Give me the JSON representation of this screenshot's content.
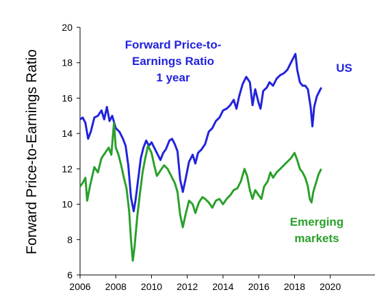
{
  "chart_data": {
    "type": "line",
    "title": "",
    "xlabel": "",
    "ylabel": "Forward Price-to-Earnings Ratio",
    "xlim": [
      2006,
      2022.5
    ],
    "ylim": [
      6,
      20
    ],
    "x_ticks": [
      2006,
      2008,
      2010,
      2012,
      2014,
      2016,
      2018,
      2020
    ],
    "y_ticks": [
      6,
      8,
      10,
      12,
      14,
      16,
      18,
      20
    ],
    "grid": false,
    "legend": "none",
    "annotations": [
      {
        "text": "Forward Price-to-",
        "color": "#2222dd"
      },
      {
        "text": "Earnings Ratio",
        "color": "#2222dd"
      },
      {
        "text": "1 year",
        "color": "#2222dd"
      },
      {
        "text": "US",
        "color": "#2222dd"
      },
      {
        "text": "Emerging",
        "color": "#2aa02a"
      },
      {
        "text": "markets",
        "color": "#2aa02a"
      }
    ],
    "series": [
      {
        "name": "US",
        "color": "#2222dd",
        "points": [
          [
            2006.0,
            14.8
          ],
          [
            2006.15,
            14.9
          ],
          [
            2006.3,
            14.6
          ],
          [
            2006.45,
            13.7
          ],
          [
            2006.6,
            14.1
          ],
          [
            2006.8,
            14.9
          ],
          [
            2007.0,
            15.0
          ],
          [
            2007.2,
            15.3
          ],
          [
            2007.35,
            14.8
          ],
          [
            2007.5,
            15.5
          ],
          [
            2007.65,
            14.7
          ],
          [
            2007.8,
            15.0
          ],
          [
            2008.0,
            14.3
          ],
          [
            2008.2,
            14.1
          ],
          [
            2008.4,
            13.7
          ],
          [
            2008.55,
            13.3
          ],
          [
            2008.7,
            12.2
          ],
          [
            2008.85,
            10.4
          ],
          [
            2009.0,
            9.6
          ],
          [
            2009.1,
            10.2
          ],
          [
            2009.25,
            11.4
          ],
          [
            2009.4,
            12.6
          ],
          [
            2009.55,
            13.2
          ],
          [
            2009.7,
            13.6
          ],
          [
            2009.85,
            13.3
          ],
          [
            2010.0,
            13.5
          ],
          [
            2010.2,
            13.1
          ],
          [
            2010.35,
            12.8
          ],
          [
            2010.5,
            12.5
          ],
          [
            2010.65,
            12.9
          ],
          [
            2010.8,
            13.1
          ],
          [
            2011.0,
            13.6
          ],
          [
            2011.15,
            13.7
          ],
          [
            2011.3,
            13.4
          ],
          [
            2011.45,
            13.0
          ],
          [
            2011.6,
            11.4
          ],
          [
            2011.75,
            10.7
          ],
          [
            2011.9,
            11.4
          ],
          [
            2012.1,
            12.4
          ],
          [
            2012.3,
            12.8
          ],
          [
            2012.45,
            12.3
          ],
          [
            2012.6,
            12.9
          ],
          [
            2012.8,
            13.1
          ],
          [
            2013.0,
            13.4
          ],
          [
            2013.2,
            14.1
          ],
          [
            2013.4,
            14.3
          ],
          [
            2013.6,
            14.7
          ],
          [
            2013.8,
            14.9
          ],
          [
            2014.0,
            15.3
          ],
          [
            2014.2,
            15.4
          ],
          [
            2014.4,
            15.6
          ],
          [
            2014.6,
            15.9
          ],
          [
            2014.75,
            15.4
          ],
          [
            2014.9,
            16.1
          ],
          [
            2015.1,
            16.8
          ],
          [
            2015.3,
            17.2
          ],
          [
            2015.5,
            16.9
          ],
          [
            2015.65,
            15.6
          ],
          [
            2015.8,
            16.5
          ],
          [
            2016.0,
            15.7
          ],
          [
            2016.1,
            15.4
          ],
          [
            2016.25,
            16.4
          ],
          [
            2016.45,
            16.6
          ],
          [
            2016.6,
            16.9
          ],
          [
            2016.8,
            16.7
          ],
          [
            2017.0,
            17.1
          ],
          [
            2017.2,
            17.3
          ],
          [
            2017.4,
            17.4
          ],
          [
            2017.6,
            17.6
          ],
          [
            2017.8,
            18.0
          ],
          [
            2017.95,
            18.3
          ],
          [
            2018.05,
            18.5
          ],
          [
            2018.15,
            17.6
          ],
          [
            2018.3,
            16.9
          ],
          [
            2018.45,
            16.7
          ],
          [
            2018.6,
            16.7
          ],
          [
            2018.75,
            16.5
          ],
          [
            2018.9,
            15.5
          ],
          [
            2019.0,
            14.4
          ],
          [
            2019.1,
            15.5
          ],
          [
            2019.25,
            16.1
          ],
          [
            2019.4,
            16.4
          ],
          [
            2019.5,
            16.6
          ]
        ]
      },
      {
        "name": "Emerging markets",
        "color": "#2aa02a",
        "points": [
          [
            2006.0,
            11.0
          ],
          [
            2006.15,
            11.2
          ],
          [
            2006.3,
            11.5
          ],
          [
            2006.4,
            10.2
          ],
          [
            2006.55,
            11.0
          ],
          [
            2006.8,
            12.1
          ],
          [
            2007.0,
            11.8
          ],
          [
            2007.2,
            12.6
          ],
          [
            2007.4,
            12.9
          ],
          [
            2007.6,
            13.2
          ],
          [
            2007.75,
            12.8
          ],
          [
            2007.9,
            14.6
          ],
          [
            2008.0,
            13.2
          ],
          [
            2008.15,
            12.8
          ],
          [
            2008.3,
            12.2
          ],
          [
            2008.45,
            11.5
          ],
          [
            2008.6,
            10.9
          ],
          [
            2008.75,
            9.6
          ],
          [
            2008.85,
            8.0
          ],
          [
            2008.95,
            6.8
          ],
          [
            2009.05,
            7.6
          ],
          [
            2009.2,
            9.3
          ],
          [
            2009.35,
            10.6
          ],
          [
            2009.5,
            11.8
          ],
          [
            2009.65,
            12.6
          ],
          [
            2009.8,
            13.3
          ],
          [
            2010.0,
            12.9
          ],
          [
            2010.15,
            12.2
          ],
          [
            2010.3,
            11.6
          ],
          [
            2010.5,
            11.9
          ],
          [
            2010.7,
            12.2
          ],
          [
            2010.9,
            12.0
          ],
          [
            2011.1,
            11.6
          ],
          [
            2011.3,
            11.2
          ],
          [
            2011.45,
            10.7
          ],
          [
            2011.6,
            9.4
          ],
          [
            2011.75,
            8.7
          ],
          [
            2011.9,
            9.4
          ],
          [
            2012.1,
            10.2
          ],
          [
            2012.3,
            10.0
          ],
          [
            2012.45,
            9.5
          ],
          [
            2012.65,
            10.1
          ],
          [
            2012.85,
            10.4
          ],
          [
            2013.0,
            10.3
          ],
          [
            2013.2,
            10.1
          ],
          [
            2013.4,
            9.8
          ],
          [
            2013.6,
            10.2
          ],
          [
            2013.8,
            10.3
          ],
          [
            2014.0,
            10.0
          ],
          [
            2014.2,
            10.3
          ],
          [
            2014.4,
            10.5
          ],
          [
            2014.6,
            10.8
          ],
          [
            2014.8,
            10.9
          ],
          [
            2015.0,
            11.3
          ],
          [
            2015.2,
            12.0
          ],
          [
            2015.35,
            11.6
          ],
          [
            2015.5,
            10.8
          ],
          [
            2015.65,
            10.3
          ],
          [
            2015.8,
            10.8
          ],
          [
            2016.0,
            10.5
          ],
          [
            2016.15,
            10.3
          ],
          [
            2016.3,
            11.0
          ],
          [
            2016.5,
            11.3
          ],
          [
            2016.65,
            11.8
          ],
          [
            2016.8,
            11.5
          ],
          [
            2017.0,
            11.8
          ],
          [
            2017.2,
            12.0
          ],
          [
            2017.4,
            12.2
          ],
          [
            2017.6,
            12.4
          ],
          [
            2017.8,
            12.6
          ],
          [
            2018.0,
            12.9
          ],
          [
            2018.15,
            12.5
          ],
          [
            2018.3,
            12.0
          ],
          [
            2018.45,
            11.8
          ],
          [
            2018.6,
            11.5
          ],
          [
            2018.75,
            11.0
          ],
          [
            2018.85,
            10.3
          ],
          [
            2018.95,
            10.1
          ],
          [
            2019.05,
            10.7
          ],
          [
            2019.2,
            11.2
          ],
          [
            2019.35,
            11.7
          ],
          [
            2019.5,
            12.0
          ]
        ]
      }
    ]
  }
}
